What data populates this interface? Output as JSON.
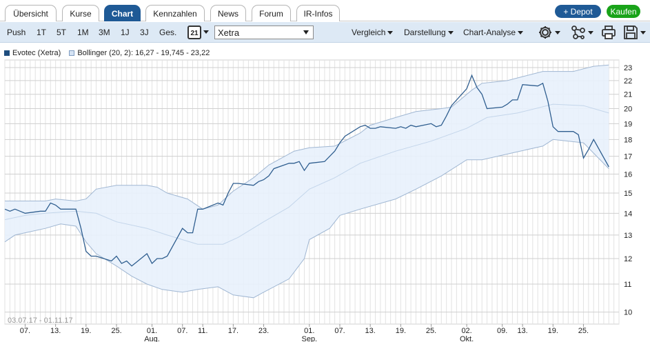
{
  "tabs": [
    {
      "label": "Übersicht",
      "active": false
    },
    {
      "label": "Kurse",
      "active": false
    },
    {
      "label": "Chart",
      "active": true
    },
    {
      "label": "Kennzahlen",
      "active": false
    },
    {
      "label": "News",
      "active": false
    },
    {
      "label": "Forum",
      "active": false
    },
    {
      "label": "IR-Infos",
      "active": false
    }
  ],
  "actions": {
    "depot_label": "+ Depot",
    "buy_label": "Kaufen"
  },
  "toolbar": {
    "periods": [
      "Push",
      "1T",
      "5T",
      "1M",
      "3M",
      "1J",
      "3J",
      "Ges."
    ],
    "calendar_day": "21",
    "exchange": "Xetra",
    "menus": [
      "Vergleich",
      "Darstellung",
      "Chart-Analyse"
    ]
  },
  "legend": {
    "series1": "Evotec (Xetra)",
    "series2": "Bollinger (20, 2): 16,27 - 19,745 - 23,22"
  },
  "colors": {
    "price": "#2f5e8f",
    "band_fill": "#e8f1fc",
    "band_line": "#9fb6d2",
    "mid_line": "#c3d5ea",
    "accent": "#1f5a96",
    "buy": "#19a319"
  },
  "date_range": "03.07.17 - 01.11.17",
  "chart_data": {
    "type": "line",
    "y_scale": "log",
    "ylim": [
      9.6,
      23.6
    ],
    "yticks": [
      10,
      11,
      12,
      13,
      14,
      15,
      16,
      17,
      18,
      19,
      20,
      21,
      22,
      23
    ],
    "x_range": [
      "2017-07-03",
      "2017-11-01"
    ],
    "xtick_labels": [
      {
        "date": "2017-07-07",
        "label": "07.",
        "month": ""
      },
      {
        "date": "2017-07-13",
        "label": "13.",
        "month": ""
      },
      {
        "date": "2017-07-19",
        "label": "19.",
        "month": ""
      },
      {
        "date": "2017-07-25",
        "label": "25.",
        "month": ""
      },
      {
        "date": "2017-08-01",
        "label": "01.",
        "month": "Aug."
      },
      {
        "date": "2017-08-07",
        "label": "07.",
        "month": ""
      },
      {
        "date": "2017-08-11",
        "label": "11.",
        "month": ""
      },
      {
        "date": "2017-08-17",
        "label": "17.",
        "month": ""
      },
      {
        "date": "2017-08-23",
        "label": "23.",
        "month": ""
      },
      {
        "date": "2017-09-01",
        "label": "01.",
        "month": "Sep."
      },
      {
        "date": "2017-09-07",
        "label": "07.",
        "month": ""
      },
      {
        "date": "2017-09-13",
        "label": "13.",
        "month": ""
      },
      {
        "date": "2017-09-19",
        "label": "19.",
        "month": ""
      },
      {
        "date": "2017-09-25",
        "label": "25.",
        "month": ""
      },
      {
        "date": "2017-10-02",
        "label": "02.",
        "month": "Okt."
      },
      {
        "date": "2017-10-09",
        "label": "09.",
        "month": ""
      },
      {
        "date": "2017-10-13",
        "label": "13.",
        "month": ""
      },
      {
        "date": "2017-10-19",
        "label": "19.",
        "month": ""
      },
      {
        "date": "2017-10-25",
        "label": "25.",
        "month": ""
      }
    ],
    "series": [
      {
        "name": "Evotec (Xetra)",
        "points": [
          [
            "2017-07-03",
            14.2
          ],
          [
            "2017-07-04",
            14.1
          ],
          [
            "2017-07-05",
            14.2
          ],
          [
            "2017-07-06",
            14.1
          ],
          [
            "2017-07-07",
            14.0
          ],
          [
            "2017-07-10",
            14.1
          ],
          [
            "2017-07-11",
            14.1
          ],
          [
            "2017-07-12",
            14.5
          ],
          [
            "2017-07-13",
            14.4
          ],
          [
            "2017-07-14",
            14.2
          ],
          [
            "2017-07-17",
            14.2
          ],
          [
            "2017-07-18",
            13.3
          ],
          [
            "2017-07-19",
            12.3
          ],
          [
            "2017-07-20",
            12.1
          ],
          [
            "2017-07-21",
            12.1
          ],
          [
            "2017-07-24",
            11.9
          ],
          [
            "2017-07-25",
            12.1
          ],
          [
            "2017-07-26",
            11.8
          ],
          [
            "2017-07-27",
            11.9
          ],
          [
            "2017-07-28",
            11.7
          ],
          [
            "2017-07-31",
            12.2
          ],
          [
            "2017-08-01",
            11.8
          ],
          [
            "2017-08-02",
            12.0
          ],
          [
            "2017-08-03",
            12.0
          ],
          [
            "2017-08-04",
            12.1
          ],
          [
            "2017-08-07",
            13.3
          ],
          [
            "2017-08-08",
            13.1
          ],
          [
            "2017-08-09",
            13.1
          ],
          [
            "2017-08-10",
            14.2
          ],
          [
            "2017-08-11",
            14.2
          ],
          [
            "2017-08-14",
            14.5
          ],
          [
            "2017-08-15",
            14.4
          ],
          [
            "2017-08-16",
            15.0
          ],
          [
            "2017-08-17",
            15.5
          ],
          [
            "2017-08-18",
            15.5
          ],
          [
            "2017-08-21",
            15.4
          ],
          [
            "2017-08-22",
            15.6
          ],
          [
            "2017-08-23",
            15.7
          ],
          [
            "2017-08-24",
            15.9
          ],
          [
            "2017-08-25",
            16.3
          ],
          [
            "2017-08-28",
            16.6
          ],
          [
            "2017-08-29",
            16.6
          ],
          [
            "2017-08-30",
            16.7
          ],
          [
            "2017-08-31",
            16.2
          ],
          [
            "2017-09-01",
            16.6
          ],
          [
            "2017-09-04",
            16.7
          ],
          [
            "2017-09-05",
            17.0
          ],
          [
            "2017-09-06",
            17.3
          ],
          [
            "2017-09-07",
            17.8
          ],
          [
            "2017-09-08",
            18.2
          ],
          [
            "2017-09-11",
            18.8
          ],
          [
            "2017-09-12",
            18.9
          ],
          [
            "2017-09-13",
            18.7
          ],
          [
            "2017-09-14",
            18.7
          ],
          [
            "2017-09-15",
            18.8
          ],
          [
            "2017-09-18",
            18.7
          ],
          [
            "2017-09-19",
            18.8
          ],
          [
            "2017-09-20",
            18.7
          ],
          [
            "2017-09-21",
            18.9
          ],
          [
            "2017-09-22",
            18.8
          ],
          [
            "2017-09-25",
            19.0
          ],
          [
            "2017-09-26",
            18.8
          ],
          [
            "2017-09-27",
            18.9
          ],
          [
            "2017-09-28",
            19.5
          ],
          [
            "2017-09-29",
            20.2
          ],
          [
            "2017-10-02",
            21.4
          ],
          [
            "2017-10-03",
            22.4
          ],
          [
            "2017-10-04",
            21.5
          ],
          [
            "2017-10-05",
            21.0
          ],
          [
            "2017-10-06",
            20.0
          ],
          [
            "2017-10-09",
            20.1
          ],
          [
            "2017-10-10",
            20.3
          ],
          [
            "2017-10-11",
            20.6
          ],
          [
            "2017-10-12",
            20.6
          ],
          [
            "2017-10-13",
            21.7
          ],
          [
            "2017-10-16",
            21.6
          ],
          [
            "2017-10-17",
            21.8
          ],
          [
            "2017-10-18",
            20.5
          ],
          [
            "2017-10-19",
            18.8
          ],
          [
            "2017-10-20",
            18.5
          ],
          [
            "2017-10-23",
            18.5
          ],
          [
            "2017-10-24",
            18.3
          ],
          [
            "2017-10-25",
            16.9
          ],
          [
            "2017-10-26",
            17.4
          ],
          [
            "2017-10-27",
            18.0
          ],
          [
            "2017-10-30",
            16.4
          ]
        ]
      },
      {
        "name": "Bollinger (20, 2)",
        "upper": [
          [
            "2017-07-03",
            14.6
          ],
          [
            "2017-07-07",
            14.6
          ],
          [
            "2017-07-11",
            14.6
          ],
          [
            "2017-07-13",
            14.7
          ],
          [
            "2017-07-17",
            14.6
          ],
          [
            "2017-07-19",
            14.7
          ],
          [
            "2017-07-21",
            15.2
          ],
          [
            "2017-07-25",
            15.4
          ],
          [
            "2017-07-31",
            15.4
          ],
          [
            "2017-08-02",
            15.3
          ],
          [
            "2017-08-04",
            15.0
          ],
          [
            "2017-08-08",
            14.7
          ],
          [
            "2017-08-11",
            14.2
          ],
          [
            "2017-08-14",
            14.4
          ],
          [
            "2017-08-17",
            15.1
          ],
          [
            "2017-08-21",
            15.8
          ],
          [
            "2017-08-24",
            16.5
          ],
          [
            "2017-08-29",
            17.3
          ],
          [
            "2017-09-01",
            17.5
          ],
          [
            "2017-09-06",
            17.6
          ],
          [
            "2017-09-11",
            18.4
          ],
          [
            "2017-09-13",
            18.9
          ],
          [
            "2017-09-18",
            19.4
          ],
          [
            "2017-09-22",
            19.8
          ],
          [
            "2017-09-27",
            20.0
          ],
          [
            "2017-09-29",
            20.1
          ],
          [
            "2017-10-03",
            21.3
          ],
          [
            "2017-10-05",
            21.8
          ],
          [
            "2017-10-10",
            22.0
          ],
          [
            "2017-10-13",
            22.3
          ],
          [
            "2017-10-17",
            22.7
          ],
          [
            "2017-10-23",
            22.7
          ],
          [
            "2017-10-25",
            22.9
          ],
          [
            "2017-10-27",
            23.1
          ],
          [
            "2017-10-30",
            23.2
          ]
        ],
        "middle": [
          [
            "2017-07-03",
            13.7
          ],
          [
            "2017-07-07",
            13.9
          ],
          [
            "2017-07-11",
            14.0
          ],
          [
            "2017-07-17",
            14.1
          ],
          [
            "2017-07-21",
            14.0
          ],
          [
            "2017-07-25",
            13.6
          ],
          [
            "2017-07-31",
            13.3
          ],
          [
            "2017-08-04",
            13.0
          ],
          [
            "2017-08-10",
            12.6
          ],
          [
            "2017-08-15",
            12.6
          ],
          [
            "2017-08-18",
            12.9
          ],
          [
            "2017-08-23",
            13.6
          ],
          [
            "2017-08-28",
            14.3
          ],
          [
            "2017-09-01",
            15.2
          ],
          [
            "2017-09-06",
            15.8
          ],
          [
            "2017-09-11",
            16.6
          ],
          [
            "2017-09-18",
            17.3
          ],
          [
            "2017-09-25",
            17.9
          ],
          [
            "2017-10-02",
            18.7
          ],
          [
            "2017-10-06",
            19.4
          ],
          [
            "2017-10-12",
            19.7
          ],
          [
            "2017-10-19",
            20.3
          ],
          [
            "2017-10-25",
            20.2
          ],
          [
            "2017-10-30",
            19.7
          ]
        ],
        "lower": [
          [
            "2017-07-03",
            12.7
          ],
          [
            "2017-07-05",
            13.0
          ],
          [
            "2017-07-07",
            13.1
          ],
          [
            "2017-07-11",
            13.3
          ],
          [
            "2017-07-14",
            13.5
          ],
          [
            "2017-07-17",
            13.4
          ],
          [
            "2017-07-19",
            12.7
          ],
          [
            "2017-07-21",
            12.2
          ],
          [
            "2017-07-25",
            11.7
          ],
          [
            "2017-07-28",
            11.3
          ],
          [
            "2017-07-31",
            11.0
          ],
          [
            "2017-08-03",
            10.8
          ],
          [
            "2017-08-07",
            10.7
          ],
          [
            "2017-08-10",
            10.8
          ],
          [
            "2017-08-14",
            10.9
          ],
          [
            "2017-08-17",
            10.6
          ],
          [
            "2017-08-21",
            10.5
          ],
          [
            "2017-08-23",
            10.7
          ],
          [
            "2017-08-28",
            11.2
          ],
          [
            "2017-08-31",
            12.0
          ],
          [
            "2017-09-01",
            12.8
          ],
          [
            "2017-09-05",
            13.3
          ],
          [
            "2017-09-07",
            13.9
          ],
          [
            "2017-09-11",
            14.2
          ],
          [
            "2017-09-18",
            14.7
          ],
          [
            "2017-09-22",
            15.2
          ],
          [
            "2017-09-27",
            15.9
          ],
          [
            "2017-10-02",
            16.8
          ],
          [
            "2017-10-05",
            16.8
          ],
          [
            "2017-10-11",
            17.2
          ],
          [
            "2017-10-17",
            17.6
          ],
          [
            "2017-10-19",
            18.0
          ],
          [
            "2017-10-25",
            17.8
          ],
          [
            "2017-10-30",
            16.3
          ]
        ]
      }
    ]
  }
}
